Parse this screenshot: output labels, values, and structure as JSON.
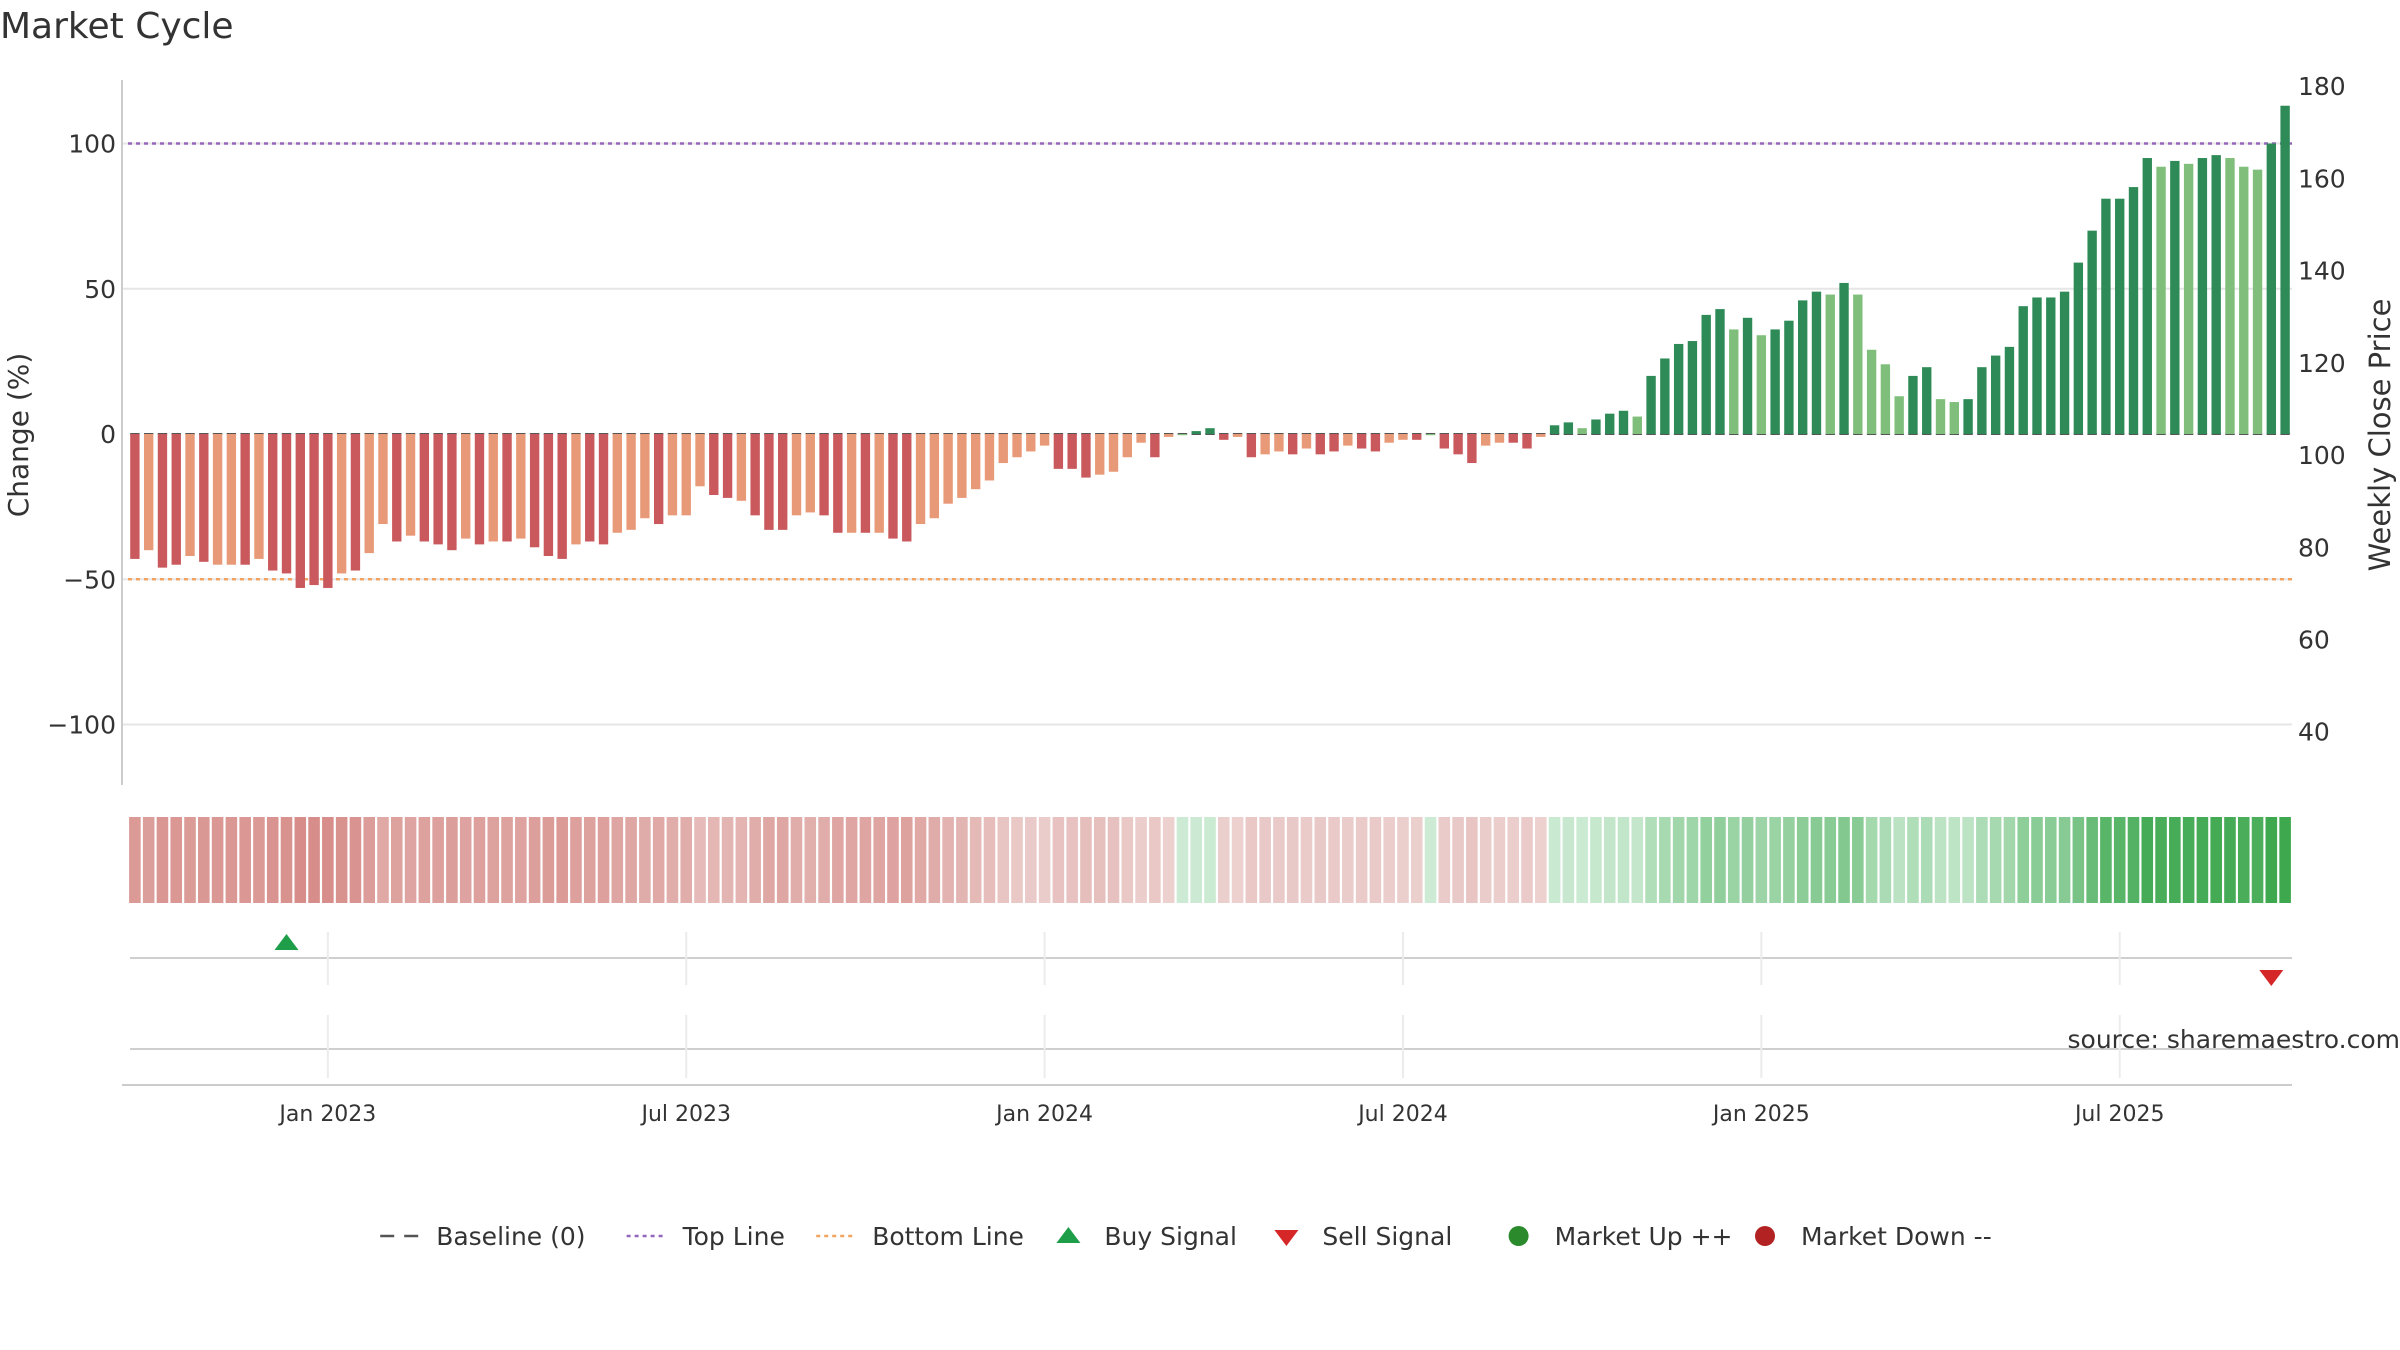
{
  "chart_data": {
    "type": "bar",
    "title": "Market Cycle",
    "ylabel_left": "Change (%)",
    "ylabel_right": "Weekly Close Price",
    "ylim": [
      -115,
      120
    ],
    "yticks_left": [
      100,
      50,
      0,
      -50,
      -100
    ],
    "yticks_left_labels": [
      "100",
      "50",
      "0",
      "−50",
      "−100"
    ],
    "right_axis": {
      "min": 28.45,
      "max": 181.35,
      "ticks": [
        40,
        60,
        80,
        100,
        120,
        140,
        160,
        180
      ]
    },
    "x_tick_labels": [
      "Jan 2023",
      "Jul 2023",
      "Jan 2024",
      "Jul 2024",
      "Jan 2025",
      "Jul 2025"
    ],
    "x_tick_bar_index": [
      14,
      40,
      66,
      92,
      118,
      144
    ],
    "reference_lines": [
      {
        "name": "Top Line",
        "value": 100,
        "color": "#9467bd",
        "style": "dotted"
      },
      {
        "name": "Bottom Line",
        "value": -50,
        "color": "#f4a460",
        "style": "dotted"
      },
      {
        "name": "Baseline (0)",
        "value": 0,
        "color": "#555555",
        "style": "dashed"
      }
    ],
    "bar_values": [
      -43,
      -40,
      -46,
      -45,
      -42,
      -44,
      -45,
      -45,
      -45,
      -43,
      -47,
      -48,
      -53,
      -52,
      -53,
      -48,
      -47,
      -41,
      -31,
      -37,
      -35,
      -37,
      -38,
      -40,
      -36,
      -38,
      -37,
      -37,
      -36,
      -39,
      -42,
      -43,
      -38,
      -37,
      -38,
      -34,
      -33,
      -29,
      -31,
      -28,
      -28,
      -18,
      -21,
      -22,
      -23,
      -28,
      -33,
      -33,
      -28,
      -27,
      -28,
      -34,
      -34,
      -34,
      -34,
      -36,
      -37,
      -31,
      -29,
      -24,
      -22,
      -19,
      -16,
      -10,
      -8,
      -6,
      -4,
      -12,
      -12,
      -15,
      -14,
      -13,
      -8,
      -3,
      -8,
      -1,
      0,
      1,
      2,
      -2,
      -1,
      -8,
      -7,
      -6,
      -7,
      -5,
      -7,
      -6,
      -4,
      -5,
      -6,
      -3,
      -2,
      -2,
      0,
      -5,
      -7,
      -10,
      -4,
      -3,
      -3,
      -5,
      -1,
      3,
      4,
      2,
      5,
      7,
      8,
      6,
      20,
      26,
      31,
      32,
      41,
      43,
      36,
      40,
      34,
      36,
      39,
      46,
      49,
      48,
      52,
      48,
      29,
      24,
      13,
      20,
      23,
      12,
      11,
      12,
      23,
      27,
      30,
      44,
      47,
      47,
      49,
      59,
      70,
      81,
      81,
      85,
      95,
      92,
      94,
      93,
      95,
      96,
      95,
      92,
      91,
      100,
      113
    ],
    "bar_shade": [
      2,
      1,
      2,
      2,
      1,
      2,
      1,
      1,
      2,
      1,
      2,
      2,
      2,
      2,
      2,
      1,
      2,
      1,
      1,
      2,
      1,
      2,
      2,
      2,
      1,
      2,
      1,
      2,
      1,
      2,
      2,
      2,
      1,
      2,
      2,
      1,
      1,
      1,
      2,
      1,
      1,
      1,
      2,
      2,
      1,
      2,
      2,
      2,
      1,
      1,
      2,
      2,
      1,
      2,
      1,
      2,
      2,
      1,
      1,
      1,
      1,
      1,
      1,
      1,
      1,
      1,
      1,
      2,
      2,
      2,
      1,
      1,
      1,
      1,
      2,
      1,
      1,
      2,
      2,
      2,
      1,
      2,
      1,
      1,
      2,
      1,
      2,
      2,
      1,
      2,
      2,
      1,
      1,
      2,
      1,
      2,
      2,
      2,
      1,
      1,
      2,
      2,
      1,
      2,
      2,
      1,
      2,
      2,
      2,
      1,
      2,
      2,
      2,
      2,
      2,
      2,
      1,
      2,
      1,
      2,
      2,
      2,
      2,
      1,
      2,
      1,
      1,
      1,
      1,
      2,
      2,
      1,
      1,
      2,
      2,
      2,
      2,
      2,
      2,
      2,
      2,
      2,
      2,
      2,
      2,
      2,
      2,
      1,
      2,
      1,
      2,
      2,
      1,
      1,
      1,
      2,
      2
    ],
    "price_axis_label": "Weekly Close Price",
    "heat_strip": {
      "description_values_follow": "bar_values"
    },
    "signals": [
      {
        "name": "Buy Signal",
        "bar_index": 11,
        "color": "#1f9e4a",
        "shape": "triangle-up"
      },
      {
        "name": "Sell Signal",
        "bar_index": 155,
        "color": "#d62728",
        "shape": "triangle-down"
      }
    ],
    "legend": [
      {
        "label": "Baseline (0)",
        "kind": "dashed",
        "color": "#555555"
      },
      {
        "label": "Top Line",
        "kind": "dotted",
        "color": "#9467bd"
      },
      {
        "label": "Bottom Line",
        "kind": "dotted",
        "color": "#f4a460"
      },
      {
        "label": "Buy Signal",
        "kind": "triangle-up",
        "color": "#1f9e4a"
      },
      {
        "label": "Sell Signal",
        "kind": "triangle-down",
        "color": "#d62728"
      },
      {
        "label": "Market Up ++",
        "kind": "circle",
        "color": "#2b8a2b"
      },
      {
        "label": "Market Down --",
        "kind": "circle",
        "color": "#b22222"
      }
    ],
    "legend_placement": "bottom-center",
    "grid": true,
    "colors": {
      "neg_dark": "#c9595c",
      "neg_light": "#e89a78",
      "pos_dark": "#2e8b57",
      "pos_light": "#7fbf7b"
    }
  },
  "source_note": "source: sharemaestro.com"
}
